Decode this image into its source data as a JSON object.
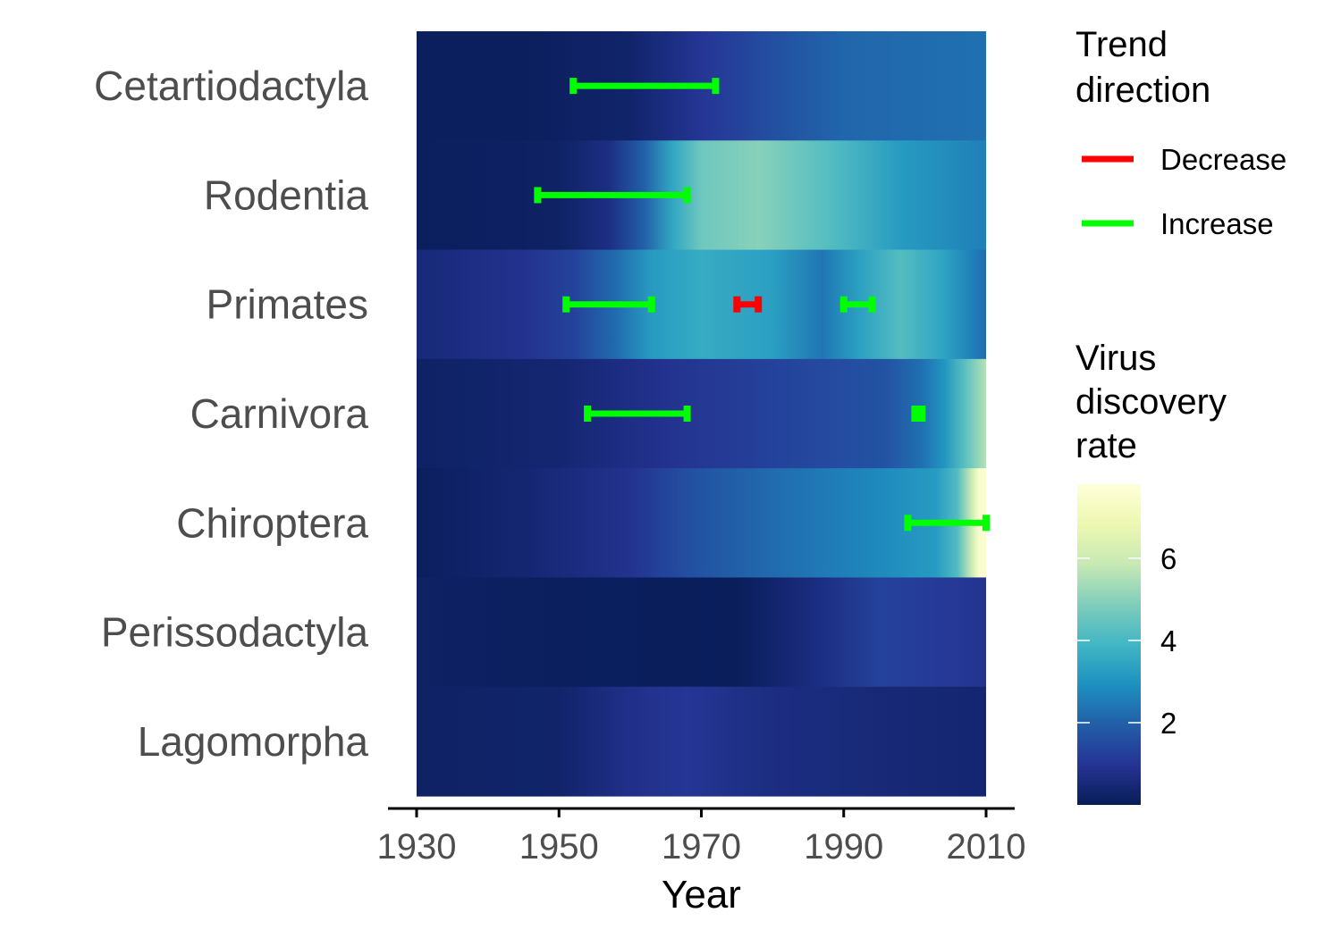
{
  "chart_data": {
    "type": "heatmap",
    "xlabel": "Year",
    "x_ticks": [
      1930,
      1950,
      1970,
      1990,
      2010
    ],
    "xlim": [
      1930,
      2010
    ],
    "rows": [
      "Cetartiodactyla",
      "Rodentia",
      "Primates",
      "Carnivora",
      "Chiroptera",
      "Perissodactyla",
      "Lagomorpha"
    ],
    "heat_series": [
      {
        "name": "Cetartiodactyla",
        "stops": [
          [
            1930,
            0.1
          ],
          [
            1945,
            0.1
          ],
          [
            1960,
            0.3
          ],
          [
            1970,
            1.0
          ],
          [
            1980,
            1.6
          ],
          [
            1990,
            2.1
          ],
          [
            2010,
            2.3
          ]
        ]
      },
      {
        "name": "Rodentia",
        "stops": [
          [
            1930,
            0.1
          ],
          [
            1950,
            0.2
          ],
          [
            1957,
            0.7
          ],
          [
            1962,
            2.0
          ],
          [
            1966,
            3.5
          ],
          [
            1970,
            4.6
          ],
          [
            1978,
            5.0
          ],
          [
            1988,
            4.2
          ],
          [
            1998,
            3.2
          ],
          [
            2010,
            2.6
          ]
        ]
      },
      {
        "name": "Primates",
        "stops": [
          [
            1930,
            0.5
          ],
          [
            1945,
            0.9
          ],
          [
            1952,
            1.3
          ],
          [
            1958,
            2.2
          ],
          [
            1963,
            3.2
          ],
          [
            1970,
            3.6
          ],
          [
            1980,
            3.3
          ],
          [
            1987,
            2.4
          ],
          [
            1992,
            3.3
          ],
          [
            1998,
            4.2
          ],
          [
            2004,
            3.4
          ],
          [
            2008,
            2.6
          ],
          [
            2010,
            2.2
          ]
        ]
      },
      {
        "name": "Carnivora",
        "stops": [
          [
            1930,
            0.2
          ],
          [
            1950,
            0.4
          ],
          [
            1965,
            0.9
          ],
          [
            1980,
            1.3
          ],
          [
            1996,
            1.7
          ],
          [
            2001,
            2.3
          ],
          [
            2004,
            3.0
          ],
          [
            2007,
            4.3
          ],
          [
            2010,
            5.6
          ]
        ]
      },
      {
        "name": "Chiroptera",
        "stops": [
          [
            1930,
            0.1
          ],
          [
            1945,
            0.4
          ],
          [
            1960,
            0.9
          ],
          [
            1968,
            1.6
          ],
          [
            1980,
            2.2
          ],
          [
            1995,
            2.8
          ],
          [
            2003,
            3.2
          ],
          [
            2006,
            4.2
          ],
          [
            2008,
            6.0
          ],
          [
            2009,
            7.5
          ],
          [
            2010,
            7.6
          ]
        ]
      },
      {
        "name": "Perissodactyla",
        "stops": [
          [
            1930,
            0.2
          ],
          [
            1950,
            0.1
          ],
          [
            1975,
            0.05
          ],
          [
            1985,
            0.6
          ],
          [
            1995,
            1.3
          ],
          [
            2005,
            1.1
          ],
          [
            2010,
            0.9
          ]
        ]
      },
      {
        "name": "Lagomorpha",
        "stops": [
          [
            1930,
            0.2
          ],
          [
            1950,
            0.3
          ],
          [
            1960,
            0.8
          ],
          [
            1968,
            1.0
          ],
          [
            1978,
            0.7
          ],
          [
            1995,
            0.5
          ],
          [
            2010,
            0.4
          ]
        ]
      }
    ],
    "trend_segments": [
      {
        "row": "Cetartiodactyla",
        "direction": "Increase",
        "start": 1952,
        "end": 1972
      },
      {
        "row": "Rodentia",
        "direction": "Increase",
        "start": 1947,
        "end": 1968
      },
      {
        "row": "Primates",
        "direction": "Increase",
        "start": 1951,
        "end": 1963
      },
      {
        "row": "Primates",
        "direction": "Decrease",
        "start": 1975,
        "end": 1978
      },
      {
        "row": "Primates",
        "direction": "Increase",
        "start": 1990,
        "end": 1994
      },
      {
        "row": "Carnivora",
        "direction": "Increase",
        "start": 1954,
        "end": 1968
      },
      {
        "row": "Carnivora",
        "direction": "Increase",
        "start": 2000,
        "end": 2001
      },
      {
        "row": "Chiroptera",
        "direction": "Increase",
        "start": 1999,
        "end": 2010
      }
    ],
    "legend_trend": {
      "title_lines": [
        "Trend",
        "direction"
      ],
      "items": [
        {
          "label": "Decrease",
          "color": "#ff0000"
        },
        {
          "label": "Increase",
          "color": "#00ff00"
        }
      ]
    },
    "colorbar": {
      "title_lines": [
        "Virus",
        "discovery",
        "rate"
      ],
      "range": [
        0,
        7.8
      ],
      "ticks": [
        2,
        4,
        6
      ],
      "colors": [
        "#081d58",
        "#253494",
        "#225ea8",
        "#1d91c0",
        "#41b6c4",
        "#7fcdbb",
        "#c7e9b4",
        "#edf8b1",
        "#ffffd9"
      ]
    },
    "grid": false,
    "legend_position": "right"
  }
}
